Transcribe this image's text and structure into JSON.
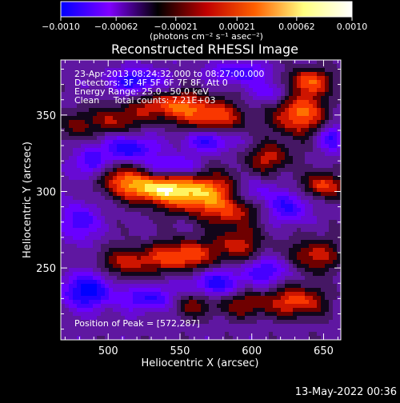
{
  "chart_data": {
    "type": "heatmap",
    "title": "Reconstructed RHESSI Image",
    "xlabel": "Heliocentric X (arcsec)",
    "ylabel": "Heliocentric Y (arcsec)",
    "xlim": [
      467,
      662
    ],
    "ylim": [
      203,
      386
    ],
    "x_ticks": [
      500,
      550,
      600,
      650
    ],
    "y_ticks": [
      250,
      300,
      350
    ],
    "colorbar": {
      "range": [
        -0.001,
        0.001
      ],
      "tick_values": [
        -0.001,
        -0.00062,
        -0.00021,
        0.00021,
        0.00062,
        0.001
      ],
      "tick_labels": [
        "−0.0010",
        "−0.00062",
        "−0.00021",
        "0.00021",
        "0.00062",
        "0.0010"
      ],
      "unit_label": "(photons cm⁻² s⁻¹ asec⁻²)",
      "colormap": [
        "#0000ff",
        "#8000ff",
        "#000000",
        "#c00000",
        "#ff6000",
        "#ffff80",
        "#ffffff"
      ]
    },
    "annotations": [
      "23-Apr-2013 08:24:32.000 to 08:27:00.000",
      "Detectors: 3F 4F 5F 6F 7F 8F, Att 0",
      "Energy Range: 25.0 - 50.0 keV",
      "Clean     Total counts: 7.21E+03"
    ],
    "peak_label": "Position of Peak = [572,287]",
    "peak": [
      572,
      287
    ],
    "blobs": [
      {
        "x": 562,
        "y": 299,
        "a": 1.0,
        "sx": 22,
        "sy": 9
      },
      {
        "x": 530,
        "y": 302,
        "a": 0.75,
        "sx": 16,
        "sy": 6
      },
      {
        "x": 508,
        "y": 309,
        "a": 0.55,
        "sx": 14,
        "sy": 7
      },
      {
        "x": 545,
        "y": 356,
        "a": 0.75,
        "sx": 20,
        "sy": 7
      },
      {
        "x": 575,
        "y": 348,
        "a": 0.6,
        "sx": 15,
        "sy": 7
      },
      {
        "x": 505,
        "y": 346,
        "a": 0.5,
        "sx": 12,
        "sy": 6
      },
      {
        "x": 478,
        "y": 343,
        "a": 0.4,
        "sx": 8,
        "sy": 8
      },
      {
        "x": 515,
        "y": 254,
        "a": 0.55,
        "sx": 15,
        "sy": 7
      },
      {
        "x": 552,
        "y": 258,
        "a": 0.8,
        "sx": 15,
        "sy": 7
      },
      {
        "x": 590,
        "y": 266,
        "a": 0.55,
        "sx": 13,
        "sy": 8
      },
      {
        "x": 585,
        "y": 286,
        "a": 0.45,
        "sx": 14,
        "sy": 6
      },
      {
        "x": 633,
        "y": 351,
        "a": 0.85,
        "sx": 13,
        "sy": 10
      },
      {
        "x": 640,
        "y": 372,
        "a": 0.7,
        "sx": 12,
        "sy": 6
      },
      {
        "x": 612,
        "y": 322,
        "a": 0.55,
        "sx": 11,
        "sy": 7
      },
      {
        "x": 650,
        "y": 304,
        "a": 0.7,
        "sx": 10,
        "sy": 6
      },
      {
        "x": 644,
        "y": 258,
        "a": 0.6,
        "sx": 12,
        "sy": 8
      },
      {
        "x": 632,
        "y": 228,
        "a": 0.75,
        "sx": 13,
        "sy": 7
      },
      {
        "x": 596,
        "y": 226,
        "a": 0.5,
        "sx": 12,
        "sy": 6
      },
      {
        "x": 558,
        "y": 226,
        "a": 0.45,
        "sx": 12,
        "sy": 6
      },
      {
        "x": 545,
        "y": 316,
        "a": -0.55,
        "sx": 12,
        "sy": 5
      },
      {
        "x": 515,
        "y": 328,
        "a": -0.65,
        "sx": 12,
        "sy": 6
      },
      {
        "x": 488,
        "y": 318,
        "a": -0.55,
        "sx": 8,
        "sy": 8
      },
      {
        "x": 570,
        "y": 333,
        "a": -0.55,
        "sx": 12,
        "sy": 5
      },
      {
        "x": 520,
        "y": 372,
        "a": -0.6,
        "sx": 14,
        "sy": 6
      },
      {
        "x": 590,
        "y": 378,
        "a": -0.5,
        "sx": 14,
        "sy": 5
      },
      {
        "x": 485,
        "y": 235,
        "a": -0.75,
        "sx": 12,
        "sy": 8
      },
      {
        "x": 530,
        "y": 230,
        "a": -0.55,
        "sx": 14,
        "sy": 6
      },
      {
        "x": 575,
        "y": 240,
        "a": -0.6,
        "sx": 12,
        "sy": 6
      },
      {
        "x": 610,
        "y": 248,
        "a": -0.5,
        "sx": 12,
        "sy": 6
      },
      {
        "x": 625,
        "y": 290,
        "a": -0.55,
        "sx": 10,
        "sy": 7
      },
      {
        "x": 615,
        "y": 365,
        "a": -0.45,
        "sx": 10,
        "sy": 6
      },
      {
        "x": 655,
        "y": 335,
        "a": -0.5,
        "sx": 7,
        "sy": 6
      },
      {
        "x": 480,
        "y": 280,
        "a": -0.5,
        "sx": 9,
        "sy": 9
      },
      {
        "x": 600,
        "y": 300,
        "a": -0.45,
        "sx": 9,
        "sy": 6
      }
    ]
  },
  "footer": {
    "timestamp": "13-May-2022 00:36"
  }
}
